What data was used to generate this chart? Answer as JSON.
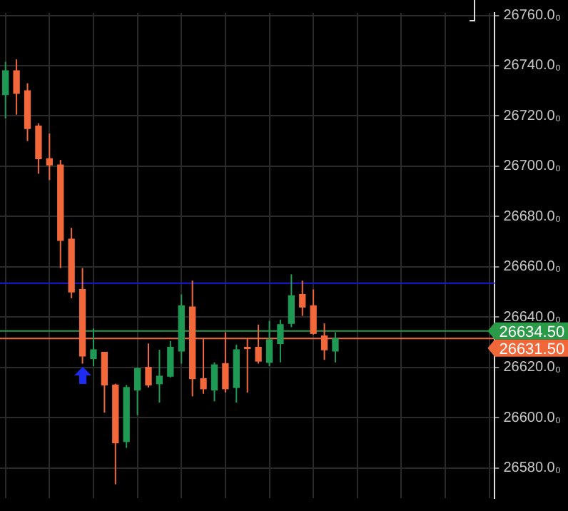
{
  "chart_data": {
    "type": "candlestick",
    "categories": [
      null,
      null,
      null,
      null,
      null,
      null,
      null,
      null,
      null,
      null,
      null,
      null,
      null,
      null,
      null,
      null,
      null,
      null,
      null,
      null,
      null,
      null,
      null,
      null,
      null,
      null,
      null,
      null,
      null,
      null,
      null,
      null,
      null,
      null,
      null,
      null,
      null,
      null,
      null,
      null,
      null,
      null,
      null,
      null,
      null
    ],
    "ohlc": [
      [
        26728.5,
        26741.5,
        26719,
        26738
      ],
      [
        26738,
        26742.5,
        26720.5,
        26729
      ],
      [
        26730,
        26733,
        26710,
        26715
      ],
      [
        26716,
        26717,
        26697,
        26703
      ],
      [
        26703,
        26713,
        26694.5,
        26700.5
      ],
      [
        26700.5,
        26702.5,
        26659.5,
        26670.5
      ],
      [
        26671,
        26675.5,
        26647.5,
        26650
      ],
      [
        26651,
        26659.5,
        26621.5,
        26624.5
      ],
      [
        26623.5,
        26635.5,
        26620.5,
        26627
      ],
      [
        26626,
        26626,
        26602,
        26613
      ],
      [
        26613,
        26613.5,
        26573.5,
        26590
      ],
      [
        26590.5,
        26613,
        26588,
        26612
      ],
      [
        26611,
        26620,
        26601,
        26619.5
      ],
      [
        26620,
        26629.5,
        26612,
        26613
      ],
      [
        26613.5,
        26627,
        26606,
        26616.5
      ],
      [
        26616.5,
        26630.5,
        26616,
        26628
      ],
      [
        26626.5,
        26649,
        26621.5,
        26644.5
      ],
      [
        26644,
        26654.5,
        26608.5,
        26615.5
      ],
      [
        26615.5,
        26631.5,
        26609.5,
        26611.5
      ],
      [
        26611,
        26622,
        26606.5,
        26621
      ],
      [
        26621.5,
        26634,
        26610,
        26611.5
      ],
      [
        26612,
        26629,
        26606,
        26627
      ],
      [
        26628,
        26631.5,
        26610,
        26627.5
      ],
      [
        26628,
        26637,
        26621.5,
        26622.5
      ],
      [
        26622,
        26638.5,
        26620.5,
        26631
      ],
      [
        26629.5,
        26639,
        26622,
        26637
      ],
      [
        26637.5,
        26657,
        26636,
        26648.5
      ],
      [
        26649,
        26654.5,
        26640.5,
        26644
      ],
      [
        26644.5,
        26651,
        26633,
        26633.5
      ],
      [
        26632.5,
        26637.5,
        26623,
        26627
      ],
      [
        26626.5,
        26634,
        26622,
        26631.5
      ],
      null,
      null,
      null,
      null,
      null,
      null,
      null,
      null,
      null,
      null,
      null,
      null,
      null,
      null
    ],
    "ylim": [
      26568,
      26761
    ],
    "yticks": [
      {
        "value": 26580,
        "label": "26580.0₀"
      },
      {
        "value": 26600,
        "label": "26600.0₀"
      },
      {
        "value": 26620,
        "label": "26620.0₀"
      },
      {
        "value": 26640,
        "label": "26640.0₀"
      },
      {
        "value": 26660,
        "label": "26660.0₀"
      },
      {
        "value": 26680,
        "label": "26680.0₀"
      },
      {
        "value": 26700,
        "label": "26700.0₀"
      },
      {
        "value": 26720,
        "label": "26720.0₀"
      },
      {
        "value": 26740,
        "label": "26740.0₀"
      },
      {
        "value": 26760,
        "label": "26760.0₀"
      }
    ],
    "grid": true,
    "tick_labels": "y",
    "ref_lines": [
      {
        "axis": "y",
        "value": 26653.5,
        "color": "#1a1ad6"
      },
      {
        "axis": "y",
        "value": 26634.5,
        "label": "26634.50",
        "color": "#2a9a48"
      },
      {
        "axis": "y",
        "value": 26631.5,
        "label": "26631.50",
        "color": "#f0683a"
      }
    ]
  }
}
